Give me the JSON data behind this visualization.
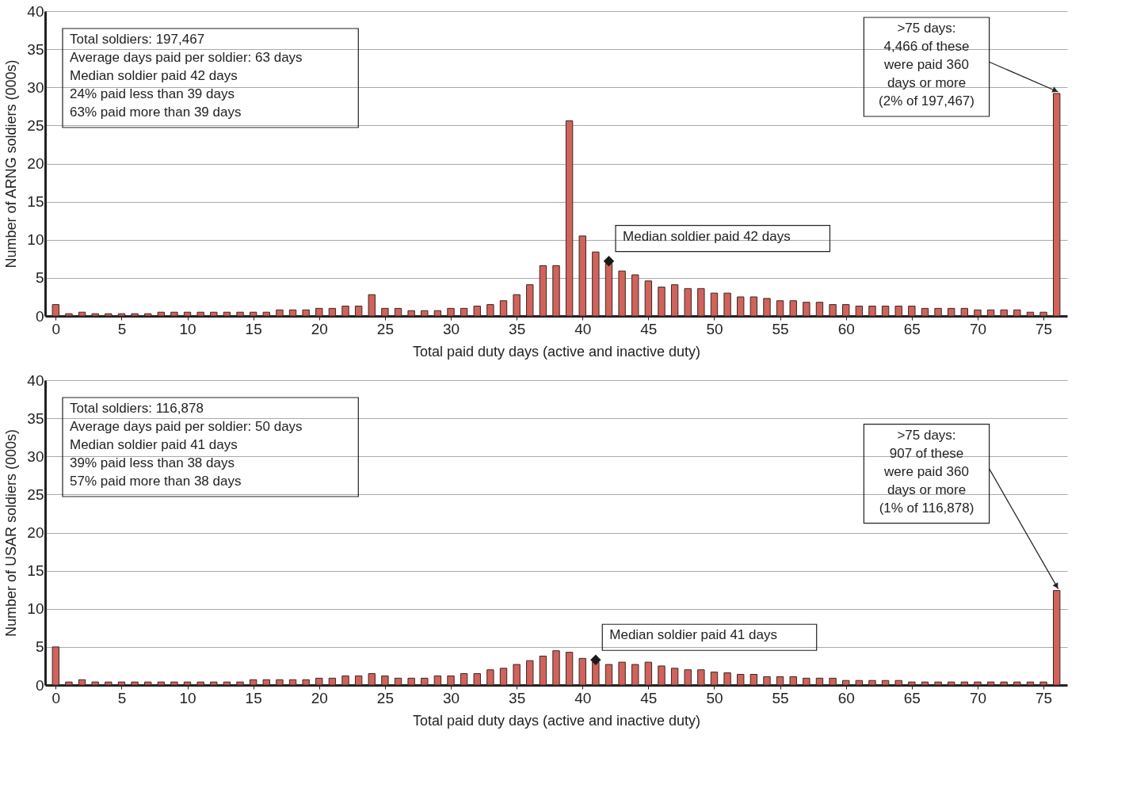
{
  "chart_data": [
    {
      "type": "bar",
      "xlabel": "Total paid duty days (active and inactive duty)",
      "ylabel": "Number of ARNG soldiers (000s)",
      "x": [
        0,
        1,
        2,
        3,
        4,
        5,
        6,
        7,
        8,
        9,
        10,
        11,
        12,
        13,
        14,
        15,
        16,
        17,
        18,
        19,
        20,
        21,
        22,
        23,
        24,
        25,
        26,
        27,
        28,
        29,
        30,
        31,
        32,
        33,
        34,
        35,
        36,
        37,
        38,
        39,
        40,
        41,
        42,
        43,
        44,
        45,
        46,
        47,
        48,
        49,
        50,
        51,
        52,
        53,
        54,
        55,
        56,
        57,
        58,
        59,
        60,
        61,
        62,
        63,
        64,
        65,
        66,
        67,
        68,
        69,
        70,
        71,
        72,
        73,
        74,
        75,
        76
      ],
      "series": [
        {
          "color": "#d0635b",
          "values": [
            1.5,
            0.3,
            0.5,
            0.3,
            0.3,
            0.3,
            0.3,
            0.3,
            0.5,
            0.5,
            0.5,
            0.5,
            0.5,
            0.5,
            0.5,
            0.5,
            0.5,
            0.8,
            0.8,
            0.8,
            1.0,
            1.0,
            1.3,
            1.3,
            2.8,
            1.0,
            1.0,
            0.7,
            0.7,
            0.7,
            1.0,
            1.0,
            1.3,
            1.5,
            2.0,
            2.8,
            4.1,
            6.6,
            6.6,
            25.6,
            10.5,
            8.4,
            6.9,
            5.9,
            5.4,
            4.6,
            3.8,
            4.1,
            3.6,
            3.6,
            3.0,
            3.0,
            2.5,
            2.5,
            2.3,
            2.0,
            2.0,
            1.8,
            1.8,
            1.5,
            1.5,
            1.3,
            1.3,
            1.3,
            1.3,
            1.3,
            1.0,
            1.0,
            1.0,
            1.0,
            0.8,
            0.8,
            0.8,
            0.8,
            0.5,
            0.5,
            29.2
          ]
        },
        {
          "type": "scatter",
          "color": "#1a1a1a",
          "marker": "diamond",
          "x": [
            42
          ],
          "values": [
            7.2
          ]
        }
      ],
      "xlim": [
        -0.5,
        76.5
      ],
      "xticks": [
        0,
        5,
        10,
        15,
        20,
        25,
        30,
        35,
        40,
        45,
        50,
        55,
        60,
        65,
        70,
        75
      ],
      "ylim": [
        0,
        40
      ],
      "yticks": [
        0,
        5,
        10,
        15,
        20,
        25,
        30,
        35,
        40
      ],
      "grid": "y",
      "annotations": [
        "Total soldiers: 197,467\nAverage days paid per soldier: 63 days\nMedian soldier paid 42 days\n24% paid less than 39 days\n63% paid more than 39 days",
        {
          "text": "Median soldier paid 42 days",
          "x": 42,
          "y": 7.2
        },
        {
          "text": ">75 days:\n4,466 of these\nwere paid 360\ndays or more\n(2% of 197,467)",
          "x": 76,
          "y": 29.2
        }
      ]
    },
    {
      "type": "bar",
      "xlabel": "Total paid duty days (active and inactive duty)",
      "ylabel": "Number of USAR soldiers (000s)",
      "x": [
        0,
        1,
        2,
        3,
        4,
        5,
        6,
        7,
        8,
        9,
        10,
        11,
        12,
        13,
        14,
        15,
        16,
        17,
        18,
        19,
        20,
        21,
        22,
        23,
        24,
        25,
        26,
        27,
        28,
        29,
        30,
        31,
        32,
        33,
        34,
        35,
        36,
        37,
        38,
        39,
        40,
        41,
        42,
        43,
        44,
        45,
        46,
        47,
        48,
        49,
        50,
        51,
        52,
        53,
        54,
        55,
        56,
        57,
        58,
        59,
        60,
        61,
        62,
        63,
        64,
        65,
        66,
        67,
        68,
        69,
        70,
        71,
        72,
        73,
        74,
        75,
        76
      ],
      "series": [
        {
          "color": "#d0635b",
          "values": [
            5.0,
            0.4,
            0.7,
            0.4,
            0.4,
            0.4,
            0.4,
            0.4,
            0.4,
            0.4,
            0.4,
            0.4,
            0.4,
            0.4,
            0.4,
            0.7,
            0.7,
            0.7,
            0.7,
            0.7,
            0.9,
            0.9,
            1.2,
            1.2,
            1.5,
            1.2,
            0.9,
            0.9,
            0.9,
            1.2,
            1.2,
            1.5,
            1.5,
            2.0,
            2.2,
            2.7,
            3.2,
            3.8,
            4.5,
            4.3,
            3.5,
            3.0,
            2.7,
            3.0,
            2.7,
            3.0,
            2.5,
            2.2,
            2.0,
            2.0,
            1.7,
            1.6,
            1.4,
            1.4,
            1.1,
            1.1,
            1.1,
            0.9,
            0.9,
            0.9,
            0.6,
            0.6,
            0.6,
            0.6,
            0.6,
            0.4,
            0.4,
            0.4,
            0.4,
            0.4,
            0.4,
            0.4,
            0.4,
            0.4,
            0.4,
            0.4,
            12.4
          ]
        },
        {
          "type": "scatter",
          "color": "#1a1a1a",
          "marker": "diamond",
          "x": [
            41
          ],
          "values": [
            3.3
          ]
        }
      ],
      "xlim": [
        -0.5,
        76.5
      ],
      "xticks": [
        0,
        5,
        10,
        15,
        20,
        25,
        30,
        35,
        40,
        45,
        50,
        55,
        60,
        65,
        70,
        75
      ],
      "ylim": [
        0,
        40
      ],
      "yticks": [
        0,
        5,
        10,
        15,
        20,
        25,
        30,
        35,
        40
      ],
      "grid": "y",
      "annotations": [
        "Total soldiers: 116,878\nAverage days paid per soldier: 50 days\nMedian soldier paid 41 days\n39% paid less than 38 days\n57% paid more than 38 days",
        {
          "text": "Median soldier paid 41 days",
          "x": 41,
          "y": 3.3
        },
        {
          "text": ">75 days:\n907 of these\nwere paid 360\ndays or more\n(1% of 116,878)",
          "x": 76,
          "y": 12.4
        }
      ]
    }
  ]
}
